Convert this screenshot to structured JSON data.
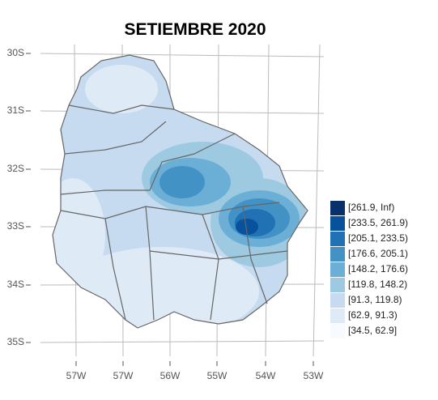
{
  "title": "SETIEMBRE 2020",
  "lat_labels": [
    "30S",
    "31S",
    "32S",
    "33S",
    "34S",
    "35S"
  ],
  "lon_labels": [
    "57W",
    "57W",
    "56W",
    "55W",
    "54W",
    "53W"
  ],
  "legend": [
    {
      "label": "[261.9, Inf)",
      "color": "#08306b"
    },
    {
      "label": "[233.5, 261.9)",
      "color": "#08519c"
    },
    {
      "label": "[205.1, 233.5)",
      "color": "#2171b5"
    },
    {
      "label": "[176.6, 205.1)",
      "color": "#4292c6"
    },
    {
      "label": "[148.2, 176.6)",
      "color": "#6baed6"
    },
    {
      "label": "[119.8, 148.2)",
      "color": "#9ecae1"
    },
    {
      "label": "[91.3, 119.8)",
      "color": "#c6dbef"
    },
    {
      "label": "[62.9, 91.3)",
      "color": "#deebf7"
    },
    {
      "label": "[34.5, 62.9]",
      "color": "#f7fbff"
    }
  ]
}
